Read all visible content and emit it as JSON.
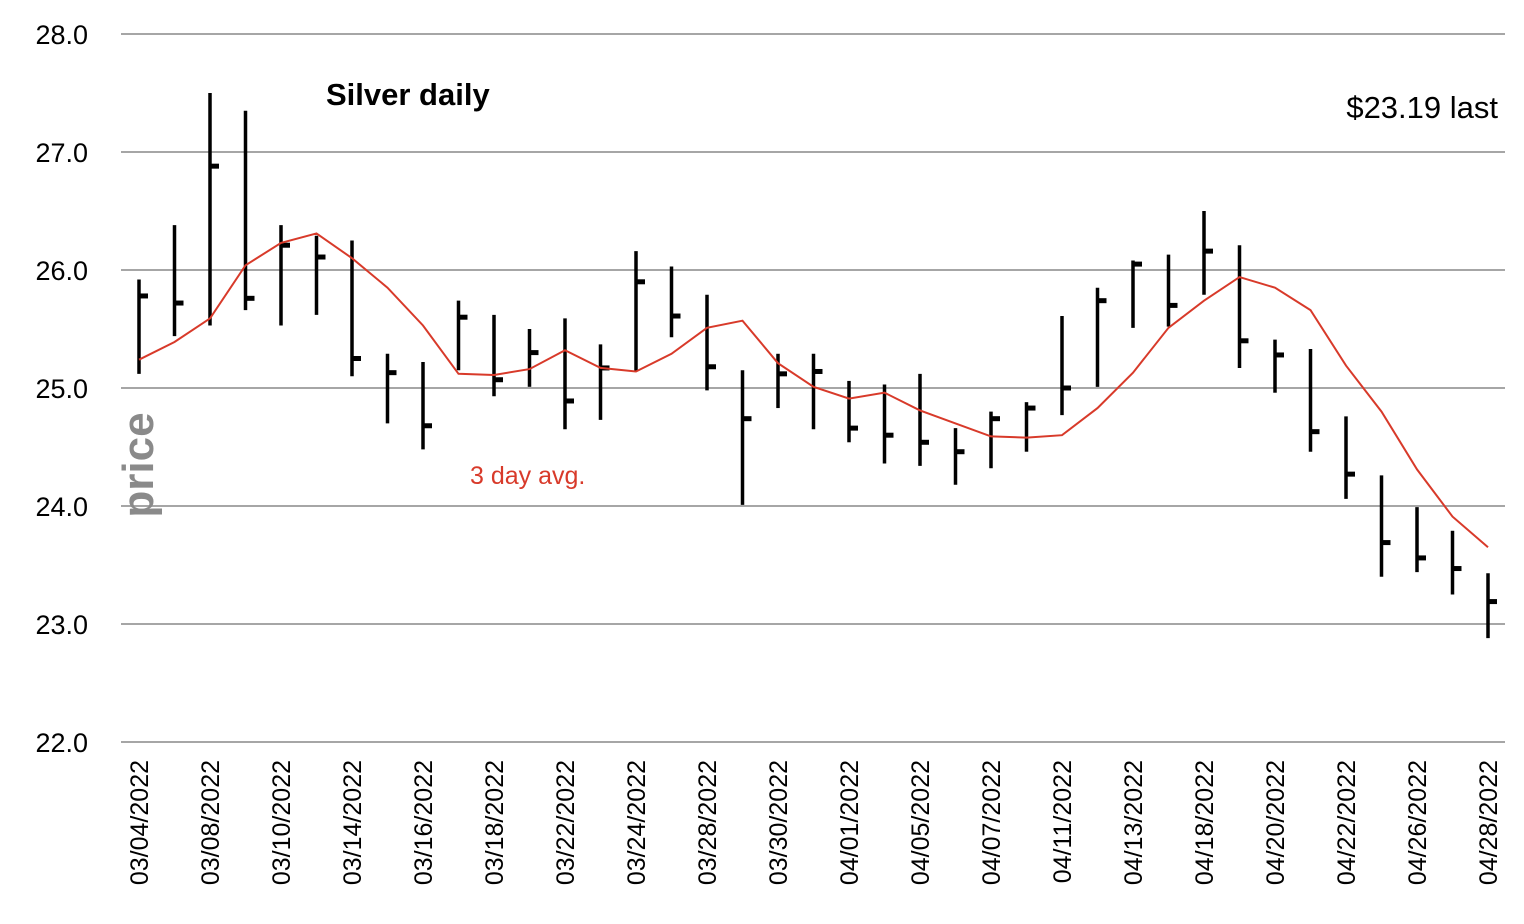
{
  "chart_data": {
    "type": "ohlc",
    "title": "Silver daily",
    "annotation_last": "$23.19 last",
    "avg_label": "3 day avg.",
    "ylabel": "price",
    "ylim": [
      22.0,
      28.0
    ],
    "yticks": [
      "22.0",
      "23.0",
      "24.0",
      "25.0",
      "26.0",
      "27.0",
      "28.0"
    ],
    "grid": "horizontal",
    "colors": {
      "bars": "#000000",
      "avg_line": "#d83a2a",
      "grid": "#a6a6a6",
      "ylabel": "#8a8a8a"
    },
    "xtick_labels": [
      "03/04/2022",
      "03/08/2022",
      "03/10/2022",
      "03/14/2022",
      "03/16/2022",
      "03/18/2022",
      "03/22/2022",
      "03/24/2022",
      "03/28/2022",
      "03/30/2022",
      "04/01/2022",
      "04/05/2022",
      "04/07/2022",
      "04/11/2022",
      "04/13/2022",
      "04/18/2022",
      "04/20/2022",
      "04/22/2022",
      "04/26/2022",
      "04/28/2022"
    ],
    "bars": [
      {
        "high": 25.92,
        "low": 25.12,
        "close": 25.78
      },
      {
        "high": 26.38,
        "low": 25.44,
        "close": 25.72
      },
      {
        "high": 27.5,
        "low": 25.53,
        "close": 26.88
      },
      {
        "high": 27.35,
        "low": 25.66,
        "close": 25.76
      },
      {
        "high": 26.38,
        "low": 25.53,
        "close": 26.21
      },
      {
        "high": 26.29,
        "low": 25.62,
        "close": 26.11
      },
      {
        "high": 26.25,
        "low": 25.1,
        "close": 25.25
      },
      {
        "high": 25.29,
        "low": 24.7,
        "close": 25.13
      },
      {
        "high": 25.22,
        "low": 24.48,
        "close": 24.68
      },
      {
        "high": 25.74,
        "low": 25.15,
        "close": 25.6
      },
      {
        "high": 25.62,
        "low": 24.93,
        "close": 25.07
      },
      {
        "high": 25.5,
        "low": 25.01,
        "close": 25.3
      },
      {
        "high": 25.59,
        "low": 24.65,
        "close": 24.89
      },
      {
        "high": 25.37,
        "low": 24.73,
        "close": 25.17
      },
      {
        "high": 26.16,
        "low": 25.14,
        "close": 25.9
      },
      {
        "high": 26.03,
        "low": 25.43,
        "close": 25.61
      },
      {
        "high": 25.79,
        "low": 24.98,
        "close": 25.18
      },
      {
        "high": 25.15,
        "low": 24.01,
        "close": 24.74
      },
      {
        "high": 25.29,
        "low": 24.83,
        "close": 25.12
      },
      {
        "high": 25.29,
        "low": 24.65,
        "close": 25.14
      },
      {
        "high": 25.06,
        "low": 24.54,
        "close": 24.66
      },
      {
        "high": 25.03,
        "low": 24.36,
        "close": 24.6
      },
      {
        "high": 25.12,
        "low": 24.34,
        "close": 24.54
      },
      {
        "high": 24.66,
        "low": 24.18,
        "close": 24.46
      },
      {
        "high": 24.8,
        "low": 24.32,
        "close": 24.74
      },
      {
        "high": 24.88,
        "low": 24.46,
        "close": 24.83
      },
      {
        "high": 25.61,
        "low": 24.77,
        "close": 25.0
      },
      {
        "high": 25.85,
        "low": 25.01,
        "close": 25.74
      },
      {
        "high": 26.08,
        "low": 25.51,
        "close": 26.05
      },
      {
        "high": 26.13,
        "low": 25.52,
        "close": 25.7
      },
      {
        "high": 26.5,
        "low": 25.79,
        "close": 26.16
      },
      {
        "high": 26.21,
        "low": 25.17,
        "close": 25.4
      },
      {
        "high": 25.41,
        "low": 24.96,
        "close": 25.28
      },
      {
        "high": 25.33,
        "low": 24.46,
        "close": 24.63
      },
      {
        "high": 24.76,
        "low": 24.06,
        "close": 24.27
      },
      {
        "high": 24.26,
        "low": 23.4,
        "close": 23.69
      },
      {
        "high": 23.99,
        "low": 23.44,
        "close": 23.56
      },
      {
        "high": 23.79,
        "low": 23.25,
        "close": 23.47
      },
      {
        "high": 23.43,
        "low": 22.88,
        "close": 23.19
      }
    ],
    "avg_series": {
      "name": "3 day avg.",
      "values": [
        25.24,
        25.39,
        25.59,
        26.04,
        26.23,
        26.31,
        26.1,
        25.85,
        25.53,
        25.12,
        25.11,
        25.16,
        25.32,
        25.17,
        25.14,
        25.29,
        25.51,
        25.57,
        25.21,
        25.01,
        24.91,
        24.96,
        24.81,
        24.7,
        24.59,
        24.58,
        24.6,
        24.83,
        25.13,
        25.51,
        25.74,
        25.94,
        25.85,
        25.66,
        25.19,
        24.8,
        24.31,
        23.91,
        23.65
      ]
    }
  }
}
